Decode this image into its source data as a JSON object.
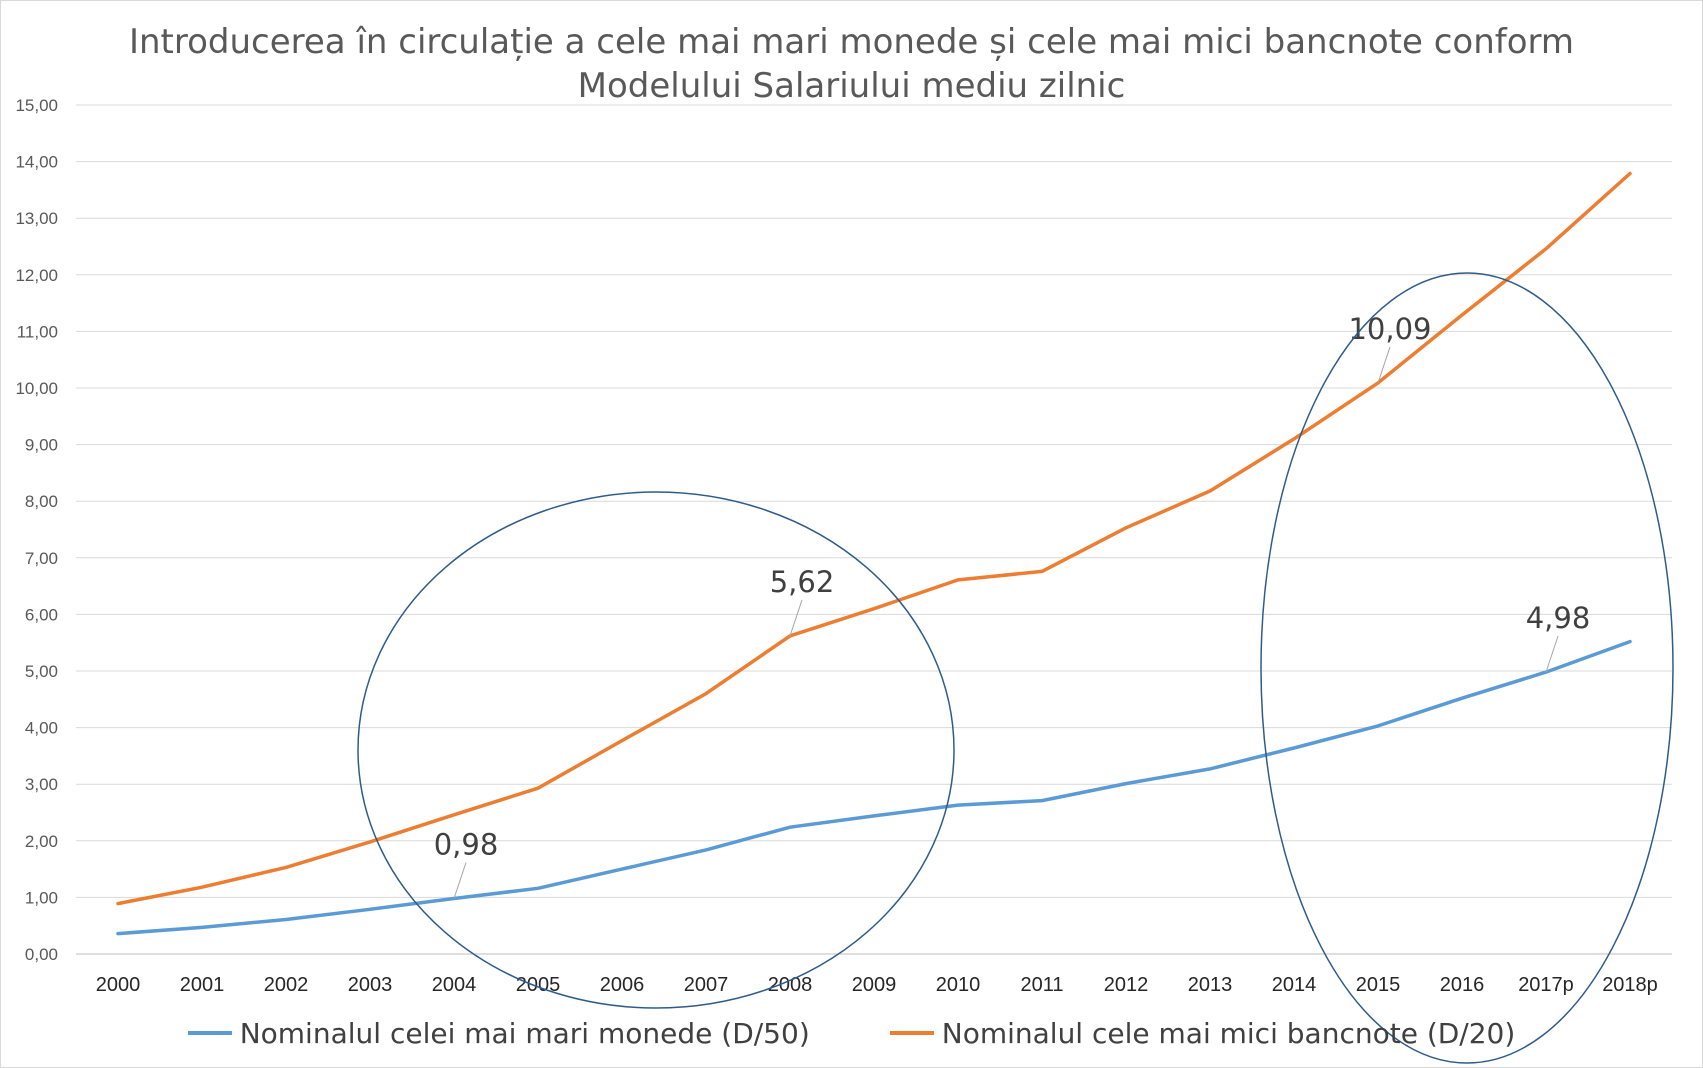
{
  "chart_data": {
    "type": "line",
    "title_line1": "Introducerea în circulație a cele mai mari monede și cele mai mici bancnote conform",
    "title_line2": "Modelului Salariului mediu zilnic",
    "categories": [
      "2000",
      "2001",
      "2002",
      "2003",
      "2004",
      "2005",
      "2006",
      "2007",
      "2008",
      "2009",
      "2010",
      "2011",
      "2012",
      "2013",
      "2014",
      "2015",
      "2016",
      "2017p",
      "2018p"
    ],
    "ylim": [
      0,
      15
    ],
    "ytick_labels": [
      "0,00",
      "1,00",
      "2,00",
      "3,00",
      "4,00",
      "5,00",
      "6,00",
      "7,00",
      "8,00",
      "9,00",
      "10,00",
      "11,00",
      "12,00",
      "13,00",
      "14,00",
      "15,00"
    ],
    "grid": true,
    "legend_position": "bottom",
    "series": [
      {
        "name": "Nominalul celei mai mari monede (D/50)",
        "color": "#5B9BD5",
        "values": [
          0.36,
          0.47,
          0.61,
          0.79,
          0.98,
          1.16,
          1.5,
          1.84,
          2.24,
          2.44,
          2.63,
          2.71,
          3.01,
          3.27,
          3.64,
          4.03,
          4.52,
          4.98,
          5.52
        ]
      },
      {
        "name": "Nominalul cele mai mici bancnote (D/20)",
        "color": "#ED7D31",
        "values": [
          0.89,
          1.18,
          1.53,
          1.98,
          2.46,
          2.93,
          3.77,
          4.6,
          5.62,
          6.1,
          6.61,
          6.76,
          7.53,
          8.18,
          9.1,
          10.09,
          11.29,
          12.46,
          13.79
        ]
      }
    ],
    "data_labels": [
      {
        "series": 0,
        "index": 4,
        "text": "0,98"
      },
      {
        "series": 1,
        "index": 8,
        "text": "5,62"
      },
      {
        "series": 1,
        "index": 15,
        "text": "10,09"
      },
      {
        "series": 0,
        "index": 17,
        "text": "4,98"
      }
    ],
    "annotations": [
      {
        "shape": "ellipse",
        "from_category": "2003",
        "to_category": "2009"
      },
      {
        "shape": "ellipse",
        "from_category": "2014",
        "to_category": "2018p"
      }
    ],
    "ellipse_color": "#2E5C8A"
  }
}
